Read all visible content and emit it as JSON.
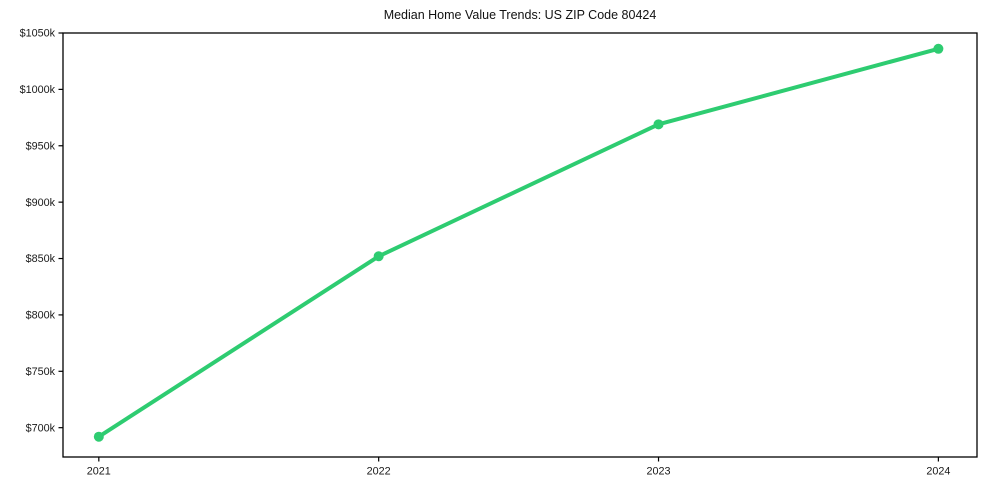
{
  "chart_data": {
    "type": "line",
    "title": "Median Home Value Trends: US ZIP Code 80424",
    "xlabel": "",
    "ylabel": "",
    "x": [
      2021,
      2022,
      2023,
      2024
    ],
    "x_tick_labels": [
      "2021",
      "2022",
      "2023",
      "2024"
    ],
    "values": [
      692,
      852,
      969,
      1036
    ],
    "y_unit": "$k",
    "y_ticks": [
      1050,
      1000,
      950,
      900,
      850,
      800,
      750,
      700
    ],
    "y_tick_labels": [
      "$1050k",
      "$1000k",
      "$950k",
      "$900k",
      "$850k",
      "$800k",
      "$750k",
      "$700k"
    ],
    "xlim": [
      2020.872,
      2024.138
    ],
    "ylim": [
      674,
      1050
    ],
    "grid": false,
    "legend": "none",
    "line_color": "#2ecc71",
    "marker": "circle",
    "marker_radius": 5,
    "line_width": 4,
    "frame_color": "#000000",
    "tick_color": "#000000",
    "background": "#ffffff"
  }
}
